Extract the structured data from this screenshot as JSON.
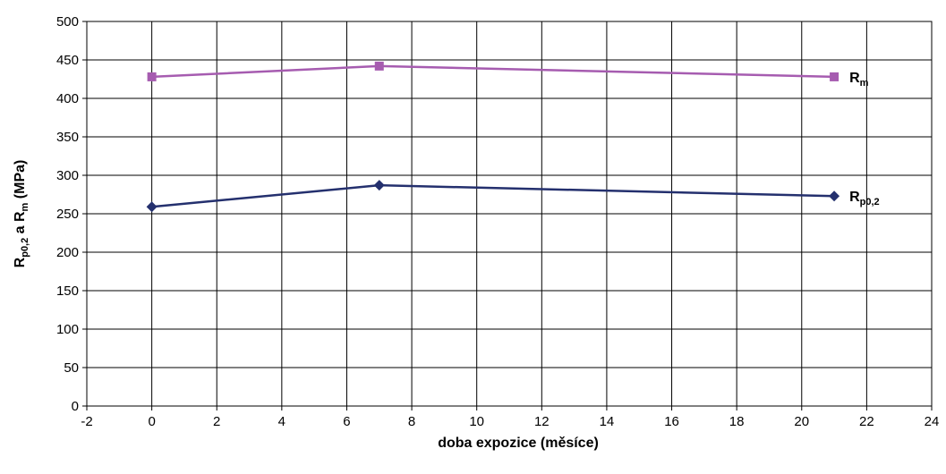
{
  "chart_data": {
    "type": "line",
    "xlabel": "doba expozice (měsíce)",
    "ylabel": {
      "parts": [
        {
          "text": "R",
          "sub": false
        },
        {
          "text": "p0,2",
          "sub": true
        },
        {
          "text": " a R",
          "sub": false
        },
        {
          "text": "m",
          "sub": true
        },
        {
          "text": " (MPa)",
          "sub": false
        }
      ]
    },
    "xlim": [
      -2,
      24
    ],
    "ylim": [
      0,
      500
    ],
    "x_ticks": [
      -2,
      0,
      2,
      4,
      6,
      8,
      10,
      12,
      14,
      16,
      18,
      20,
      22,
      24
    ],
    "y_ticks": [
      0,
      50,
      100,
      150,
      200,
      250,
      300,
      350,
      400,
      450,
      500
    ],
    "grid": true,
    "series": [
      {
        "label_main": "R",
        "label_sub": "m",
        "x": [
          0,
          7,
          21
        ],
        "y": [
          428,
          442,
          428
        ],
        "color": "#A65CB0",
        "marker": "square"
      },
      {
        "label_main": "R",
        "label_sub": "p0,2",
        "x": [
          0,
          7,
          21
        ],
        "y": [
          259,
          287,
          273
        ],
        "color": "#24306E",
        "marker": "diamond"
      }
    ]
  }
}
